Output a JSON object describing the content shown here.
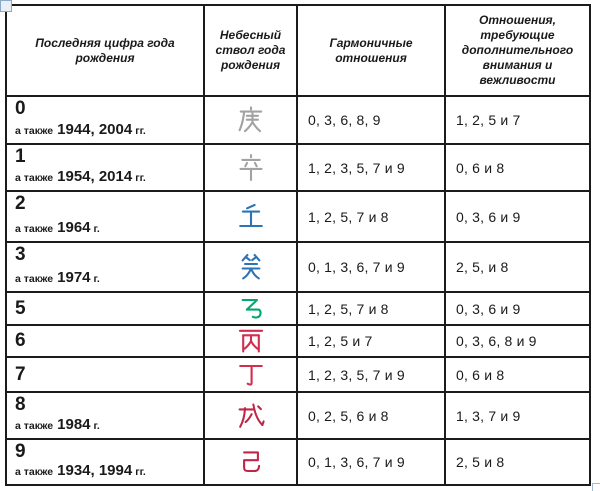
{
  "window": {
    "background": "#ffffff"
  },
  "icons": {
    "move_handle": "table-move-handle-icon",
    "resize_handle": "table-resize-handle-icon"
  },
  "table": {
    "border_color": "#1b1b1b",
    "headers": [
      "Последняя цифра года\nрождения",
      "Небесный\nствол года\nрождения",
      "Гармоничные\nотношения",
      "Отношения,\nтребующие\nдополнительного\nвнимания и\nвежливости"
    ],
    "rows": [
      {
        "digit": "0",
        "also": "а также",
        "years": "1944, 2004",
        "unit": "гг.",
        "stem": "庚",
        "stem_name": "geng",
        "stem_color": "#a2a2a2",
        "harmonious": "0, 3, 6, 8, 9",
        "attention": "1, 2, 5 и 7"
      },
      {
        "digit": "1",
        "also": "а также",
        "years": "1954, 2014",
        "unit": "гг.",
        "stem": "辛",
        "stem_name": "xin",
        "stem_color": "#a2a2a2",
        "harmonious": "1, 2, 3, 5, 7 и 9",
        "attention": "0, 6 и 8"
      },
      {
        "digit": "2",
        "also": "а также",
        "years": "1964",
        "unit": "г.",
        "stem": "壬",
        "stem_name": "ren",
        "stem_color": "#2e74b5",
        "harmonious": "1, 2, 5, 7 и 8",
        "attention": "0, 3, 6 и 9"
      },
      {
        "digit": "3",
        "also": "а также",
        "years": "1974",
        "unit": "г.",
        "stem": "癸",
        "stem_name": "gui",
        "stem_color": "#2e74b5",
        "harmonious": "0, 1, 3, 6, 7 и 9",
        "attention": "2, 5, и 8"
      },
      {
        "digit": "5",
        "also": "",
        "years": "",
        "unit": "",
        "stem": "乙",
        "stem_name": "yi",
        "stem_color": "#00a870",
        "harmonious": "1, 2, 5, 7 и 8",
        "attention": "0, 3, 6 и 9"
      },
      {
        "digit": "6",
        "also": "",
        "years": "",
        "unit": "",
        "stem": "丙",
        "stem_name": "bing",
        "stem_color": "#d22e4e",
        "harmonious": "1, 2, 5 и 7",
        "attention": "0, 3, 6, 8 и 9"
      },
      {
        "digit": "7",
        "also": "",
        "years": "",
        "unit": "",
        "stem": "丁",
        "stem_name": "ding",
        "stem_color": "#d22e4e",
        "harmonious": "1, 2, 3, 5, 7 и 9",
        "attention": "0, 6 и 8"
      },
      {
        "digit": "8",
        "also": "а также",
        "years": "1984",
        "unit": "г.",
        "stem": "戊",
        "stem_name": "wu",
        "stem_color": "#bf2748",
        "harmonious": "0, 2, 5, 6 и 8",
        "attention": "1, 3, 7 и 9"
      },
      {
        "digit": "9",
        "also": "а также",
        "years": "1934, 1994",
        "unit": "гг.",
        "stem": "己",
        "stem_name": "ji",
        "stem_color": "#bf2748",
        "harmonious": "0, 1, 3, 6, 7 и 9",
        "attention": "2, 5 и 8"
      }
    ]
  }
}
